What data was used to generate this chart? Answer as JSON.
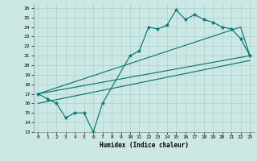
{
  "xlabel": "Humidex (Indice chaleur)",
  "bg_color": "#cce8e4",
  "line_color": "#007070",
  "grid_color": "#aad0cc",
  "xlim": [
    -0.5,
    23.5
  ],
  "ylim": [
    13,
    26.5
  ],
  "yticks": [
    13,
    14,
    15,
    16,
    17,
    18,
    19,
    20,
    21,
    22,
    23,
    24,
    25,
    26
  ],
  "xticks": [
    0,
    1,
    2,
    3,
    4,
    5,
    6,
    7,
    8,
    9,
    10,
    11,
    12,
    13,
    14,
    15,
    16,
    17,
    18,
    19,
    20,
    21,
    22,
    23
  ],
  "line1_x": [
    0,
    1,
    2,
    3,
    4,
    5,
    6,
    7,
    10,
    11,
    12,
    13,
    14,
    15,
    16,
    17,
    18,
    19,
    20,
    21,
    22,
    23
  ],
  "line1_y": [
    17,
    16.5,
    16,
    14.5,
    15,
    15,
    13,
    16,
    21,
    21.5,
    24,
    23.8,
    24.2,
    25.8,
    24.8,
    25.3,
    24.8,
    24.5,
    24,
    23.8,
    22.8,
    21
  ],
  "line2_x": [
    0,
    22,
    23
  ],
  "line2_y": [
    17,
    24,
    21
  ],
  "line3_x": [
    0,
    23
  ],
  "line3_y": [
    17,
    21
  ],
  "line4_x": [
    0,
    23
  ],
  "line4_y": [
    16,
    20.5
  ]
}
